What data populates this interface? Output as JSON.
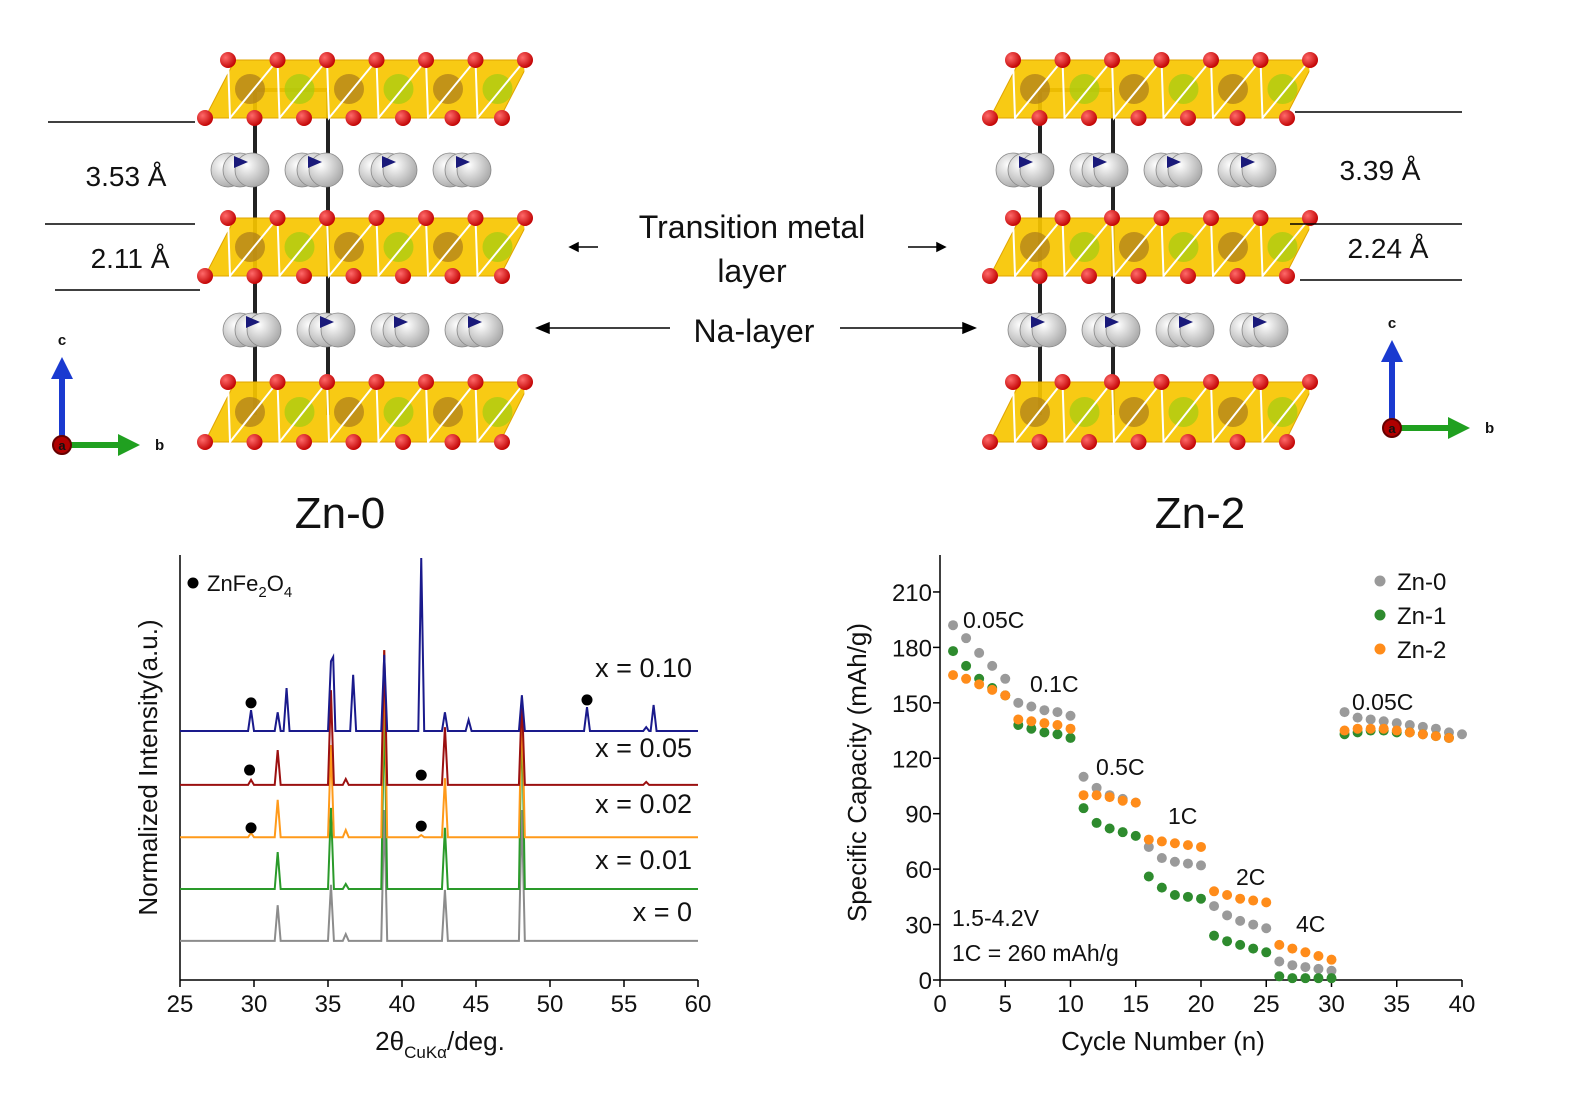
{
  "diagram": {
    "left_title": "Zn-0",
    "right_title": "Zn-2",
    "left_distances": [
      "3.53 Å",
      "2.11 Å"
    ],
    "right_distances": [
      "3.39 Å",
      "2.24 Å"
    ],
    "tm_label": [
      "Transition metal",
      "layer"
    ],
    "na_label": "Na-layer",
    "axis_letters": {
      "c": "c",
      "b": "b",
      "a": "a"
    }
  },
  "chart_data": [
    {
      "type": "line",
      "xlabel": {
        "main": "2θ",
        "sub": "CuKα",
        "after": "/deg."
      },
      "ylabel": "Normalized Intensity(a.u.)",
      "xlim": [
        25,
        60
      ],
      "xticks": [
        25,
        30,
        35,
        40,
        45,
        50,
        55,
        60
      ],
      "ylim": [
        0,
        100
      ],
      "marker_label": [
        "ZnFe",
        "2",
        "O",
        "4"
      ],
      "markers": {
        "x": [
          29.8,
          52.5,
          29.7,
          41.3,
          29.8,
          41.3
        ],
        "y": [
          65.2,
          65.9,
          49.4,
          48.2,
          35.8,
          36.2
        ]
      },
      "series": [
        {
          "name": "x = 0",
          "color": "#8c8c8c",
          "x": [
            25,
            31.4,
            31.6,
            31.8,
            35.0,
            35.2,
            35.4,
            36.0,
            36.2,
            36.4,
            38.6,
            38.8,
            39.0,
            42.7,
            42.9,
            43.1,
            47.9,
            48.1,
            48.3,
            60
          ],
          "values": [
            9.2,
            9.2,
            17.6,
            9.2,
            9.2,
            22.4,
            9.2,
            9.2,
            10.8,
            9.2,
            9.2,
            40,
            9.2,
            9.2,
            21.2,
            9.2,
            9.2,
            40,
            9.2,
            9.2
          ]
        },
        {
          "name": "x = 0.01",
          "color": "#2a9a2a",
          "x": [
            25,
            31.4,
            31.6,
            31.8,
            35.0,
            35.2,
            35.4,
            36.0,
            36.2,
            36.4,
            38.6,
            38.8,
            39.0,
            42.7,
            42.9,
            43.1,
            47.9,
            48.1,
            48.3,
            60
          ],
          "values": [
            21.4,
            21.4,
            30.1,
            21.4,
            21.4,
            40.5,
            21.4,
            21.4,
            22.6,
            21.4,
            21.4,
            65.9,
            21.4,
            21.4,
            35.8,
            21.4,
            21.4,
            64.7,
            21.4,
            21.4
          ]
        },
        {
          "name": "x = 0.02",
          "color": "#ff9a1a",
          "x": [
            25,
            29.6,
            29.8,
            30.0,
            31.4,
            31.6,
            31.8,
            35.0,
            35.2,
            35.4,
            36.0,
            36.2,
            36.4,
            38.6,
            38.8,
            39.0,
            41.1,
            41.3,
            41.5,
            42.7,
            42.9,
            43.1,
            47.9,
            48.1,
            48.3,
            60
          ],
          "values": [
            33.6,
            33.6,
            34.6,
            33.6,
            33.6,
            42.4,
            33.6,
            33.6,
            55.3,
            33.6,
            33.6,
            35.3,
            33.6,
            33.6,
            77.6,
            33.6,
            33.6,
            34.1,
            33.6,
            33.6,
            47.5,
            33.6,
            33.6,
            65.9,
            33.6,
            33.6
          ]
        },
        {
          "name": "x = 0.05",
          "color": "#9b1010",
          "x": [
            25,
            29.6,
            29.8,
            30.0,
            31.4,
            31.6,
            31.8,
            35.0,
            35.2,
            35.4,
            36.0,
            36.2,
            36.4,
            38.6,
            38.8,
            39.0,
            42.7,
            42.9,
            43.1,
            47.9,
            48.1,
            48.3,
            56.3,
            56.5,
            56.7,
            60
          ],
          "values": [
            45.9,
            45.9,
            47.1,
            45.9,
            45.9,
            54.1,
            45.9,
            45.9,
            68.2,
            45.9,
            45.9,
            47.3,
            45.9,
            45.9,
            77.6,
            45.9,
            45.9,
            59.5,
            45.9,
            45.9,
            66.4,
            45.9,
            45.9,
            46.6,
            45.9,
            45.9
          ]
        },
        {
          "name": "x = 0.10",
          "color": "#1a1a8c",
          "x": [
            25,
            29.6,
            29.8,
            30.0,
            31.4,
            31.6,
            31.8,
            32.0,
            32.2,
            32.4,
            35.0,
            35.2,
            35.35,
            35.5,
            36.5,
            36.7,
            36.9,
            38.6,
            38.8,
            39.0,
            41.1,
            41.3,
            41.5,
            42.7,
            42.9,
            43.1,
            44.3,
            44.5,
            44.7,
            47.9,
            48.1,
            48.3,
            52.3,
            52.5,
            52.7,
            56.3,
            56.5,
            56.7,
            56.8,
            57.0,
            57.2,
            60
          ],
          "values": [
            58.6,
            58.6,
            63.5,
            58.6,
            58.6,
            63,
            58.6,
            58.6,
            68.7,
            58.6,
            58.6,
            75,
            76,
            58.6,
            58.6,
            71.8,
            58.6,
            58.6,
            76.5,
            58.6,
            58.6,
            99.3,
            58.6,
            58.6,
            63,
            58.6,
            58.6,
            61.2,
            58.6,
            58.6,
            67,
            58.6,
            58.6,
            64.2,
            58.6,
            58.6,
            59.5,
            58.6,
            58.6,
            64.7,
            58.6,
            58.6
          ]
        }
      ]
    },
    {
      "type": "scatter",
      "xlabel": "Cycle Number (n)",
      "ylabel": "Specific Capacity (mAh/g)",
      "xlim": [
        0,
        40
      ],
      "xticks": [
        0,
        5,
        10,
        15,
        20,
        25,
        30,
        35,
        40
      ],
      "ylim": [
        0,
        230
      ],
      "yticks": [
        0,
        30,
        60,
        90,
        120,
        150,
        180,
        210
      ],
      "annotations": [
        "0.05C",
        "0.1C",
        "0.5C",
        "1C",
        "2C",
        "4C",
        "0.05C",
        "1.5-4.2V",
        "1C = 260 mAh/g"
      ],
      "x": [
        1,
        2,
        3,
        4,
        5,
        6,
        7,
        8,
        9,
        10,
        11,
        12,
        13,
        14,
        15,
        16,
        17,
        18,
        19,
        20,
        21,
        22,
        23,
        24,
        25,
        26,
        27,
        28,
        29,
        30,
        31,
        32,
        33,
        34,
        35,
        36,
        37,
        38,
        39,
        40
      ],
      "series": [
        {
          "name": "Zn-0",
          "color": "#9a9a9a",
          "values": [
            192,
            185,
            177,
            170,
            163,
            150,
            148,
            146,
            145,
            143,
            110,
            104,
            100,
            98,
            96,
            72,
            66,
            64,
            63,
            62,
            40,
            35,
            32,
            30,
            28,
            10,
            8,
            7,
            6,
            5,
            145,
            142,
            141,
            140,
            139,
            138,
            137,
            136,
            134,
            133
          ]
        },
        {
          "name": "Zn-1",
          "color": "#2e8b2e",
          "values": [
            178,
            170,
            163,
            158,
            154,
            138,
            136,
            134,
            133,
            131,
            93,
            85,
            82,
            80,
            78,
            56,
            50,
            46,
            45,
            44,
            24,
            21,
            19,
            17,
            15,
            2,
            1,
            1,
            1,
            1,
            133,
            134,
            135,
            135,
            134,
            134,
            133,
            132,
            131,
            null
          ]
        },
        {
          "name": "Zn-2",
          "color": "#ff8c1a",
          "values": [
            165,
            163,
            160,
            157,
            154,
            141,
            140,
            139,
            138,
            136,
            100,
            100,
            99,
            97,
            96,
            76,
            75,
            74,
            73,
            72,
            48,
            46,
            44,
            43,
            42,
            19,
            17,
            15,
            13,
            11,
            135,
            136,
            136,
            136,
            135,
            134,
            133,
            132,
            131,
            null
          ]
        }
      ]
    }
  ]
}
